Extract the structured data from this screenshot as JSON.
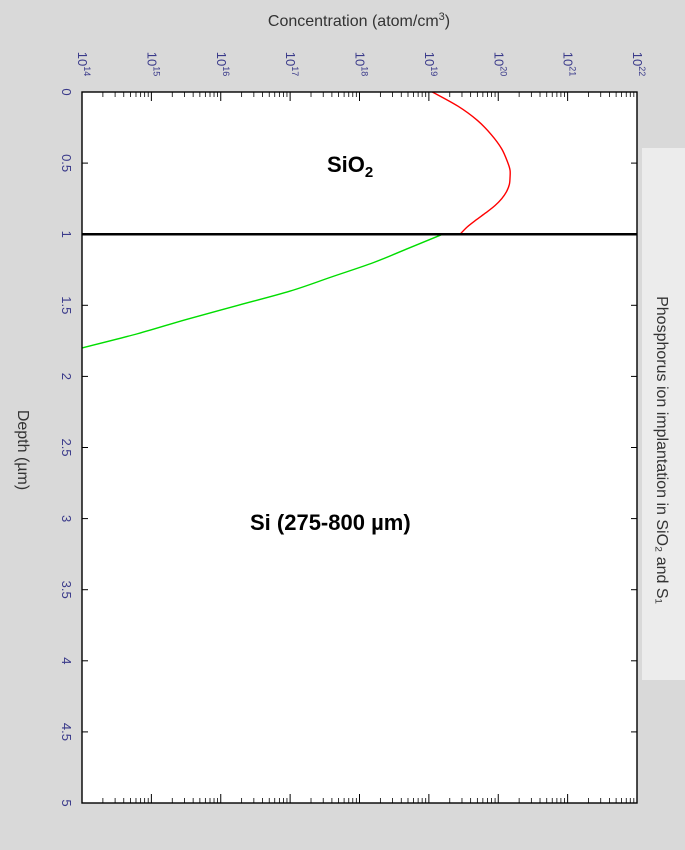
{
  "chart_data": {
    "type": "line",
    "title": "Phosphorus ion implantation in SiO₂ and S₁",
    "xlabel": "Depth (µm)",
    "ylabel": "Concentration (atom/cm³)",
    "depth_range": [
      0,
      5
    ],
    "depth_ticks": [
      "0",
      "0.5",
      "1",
      "1.5",
      "2",
      "2.5",
      "3",
      "3.5",
      "4",
      "4.5",
      "5"
    ],
    "concentration_scale": "log",
    "concentration_range": [
      100000000000000.0,
      1e+22
    ],
    "concentration_ticks": [
      {
        "base": "10",
        "exp": "14"
      },
      {
        "base": "10",
        "exp": "15"
      },
      {
        "base": "10",
        "exp": "16"
      },
      {
        "base": "10",
        "exp": "17"
      },
      {
        "base": "10",
        "exp": "18"
      },
      {
        "base": "10",
        "exp": "19"
      },
      {
        "base": "10",
        "exp": "20"
      },
      {
        "base": "10",
        "exp": "21"
      },
      {
        "base": "10",
        "exp": "22"
      }
    ],
    "interface_depth": 1,
    "regions": {
      "oxide": {
        "text": "SiO",
        "sub": "2"
      },
      "substrate": "Si (275-800 µm)"
    },
    "series": [
      {
        "segment": "SiO2",
        "color": "#ff0000",
        "depth": [
          0,
          0.1,
          0.2,
          0.3,
          0.4,
          0.5,
          0.55,
          0.6,
          0.65,
          0.7,
          0.75,
          0.8,
          0.85,
          0.9,
          0.95,
          1.0
        ],
        "log_concentration": [
          19.05,
          19.42,
          19.7,
          19.9,
          20.05,
          20.14,
          20.17,
          20.17,
          20.16,
          20.12,
          20.05,
          19.95,
          19.82,
          19.68,
          19.55,
          19.45
        ]
      },
      {
        "segment": "Si",
        "color": "#00dd00",
        "depth": [
          1.0,
          1.05,
          1.1,
          1.2,
          1.3,
          1.4,
          1.5,
          1.6,
          1.7,
          1.8
        ],
        "log_concentration": [
          19.2,
          18.95,
          18.7,
          18.2,
          17.6,
          17.0,
          16.25,
          15.5,
          14.8,
          14.0
        ]
      }
    ],
    "grid": false
  }
}
